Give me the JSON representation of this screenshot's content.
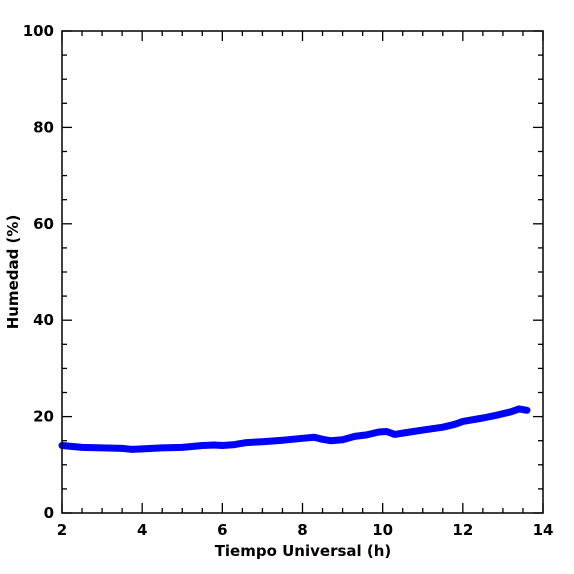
{
  "chart_data": {
    "type": "line",
    "xlabel": "Tiempo Universal (h)",
    "ylabel": "Humedad (%)",
    "xlim": [
      2,
      14
    ],
    "ylim": [
      0,
      100
    ],
    "xticks": [
      2,
      4,
      6,
      8,
      10,
      12,
      14
    ],
    "yticks": [
      0,
      20,
      40,
      60,
      80,
      100
    ],
    "xticks_minor_step": 0.5,
    "yticks_minor_step": 5,
    "grid": false,
    "series": [
      {
        "color": "#0000ff",
        "x": [
          2.0,
          2.5,
          3.0,
          3.5,
          3.75,
          4.0,
          4.5,
          5.0,
          5.5,
          5.8,
          6.0,
          6.3,
          6.6,
          7.0,
          7.5,
          8.0,
          8.3,
          8.5,
          8.7,
          9.0,
          9.3,
          9.6,
          9.9,
          10.1,
          10.3,
          10.6,
          11.0,
          11.5,
          11.8,
          12.0,
          12.5,
          12.8,
          13.0,
          13.2,
          13.4,
          13.6
        ],
        "values": [
          14.0,
          13.6,
          13.5,
          13.4,
          13.2,
          13.3,
          13.5,
          13.6,
          14.0,
          14.1,
          14.0,
          14.2,
          14.6,
          14.8,
          15.1,
          15.5,
          15.7,
          15.3,
          15.0,
          15.2,
          15.9,
          16.2,
          16.8,
          16.9,
          16.3,
          16.7,
          17.2,
          17.8,
          18.4,
          19.0,
          19.7,
          20.2,
          20.6,
          21.0,
          21.6,
          21.3
        ]
      }
    ]
  }
}
